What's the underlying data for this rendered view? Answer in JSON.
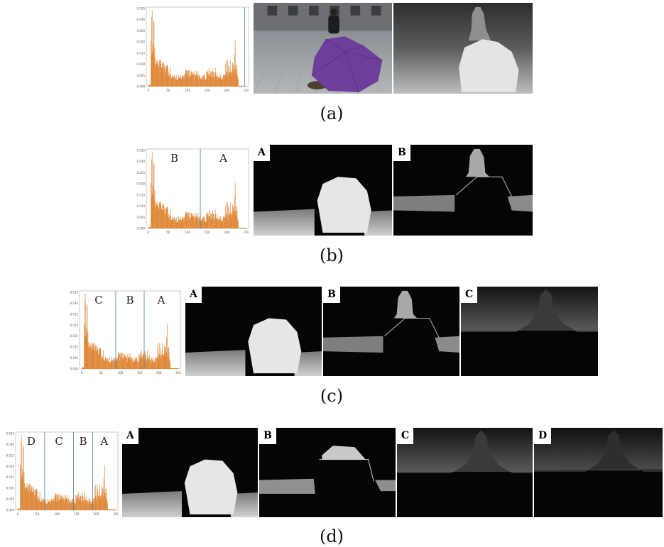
{
  "rows": [
    {
      "id": "a",
      "caption": "(a)",
      "histogram": {
        "yticks": [
          "0.000",
          "0.005",
          "0.010",
          "0.015",
          "0.020",
          "0.025",
          "0.030",
          "0.035"
        ],
        "xticks": [
          "0",
          "50",
          "100",
          "150",
          "200",
          "250"
        ],
        "segments": [],
        "dividers": [
          250
        ]
      },
      "panels": [
        {
          "kind": "photo",
          "label": ""
        },
        {
          "kind": "depth",
          "label": ""
        }
      ]
    },
    {
      "id": "b",
      "caption": "(b)",
      "histogram": {
        "yticks": [
          "0.000",
          "0.005",
          "0.010",
          "0.015",
          "0.020",
          "0.025",
          "0.030",
          "0.035"
        ],
        "xticks": [
          "0",
          "50",
          "100",
          "150",
          "200",
          "250"
        ],
        "segments": [
          "B",
          "A"
        ],
        "dividers": [
          135
        ]
      },
      "panels": [
        {
          "kind": "A",
          "label": "A"
        },
        {
          "kind": "B",
          "label": "B"
        }
      ]
    },
    {
      "id": "c",
      "caption": "(c)",
      "histogram": {
        "yticks": [
          "0.000",
          "0.005",
          "0.010",
          "0.015",
          "0.020",
          "0.025",
          "0.030",
          "0.035"
        ],
        "xticks": [
          "0",
          "50",
          "100",
          "150",
          "200",
          "250"
        ],
        "segments": [
          "C",
          "B",
          "A"
        ],
        "dividers": [
          90,
          165
        ]
      },
      "panels": [
        {
          "kind": "A",
          "label": "A"
        },
        {
          "kind": "B",
          "label": "B"
        },
        {
          "kind": "C",
          "label": "C"
        }
      ]
    },
    {
      "id": "d",
      "caption": "(d)",
      "histogram": {
        "yticks": [
          "0.000",
          "0.005",
          "0.010",
          "0.015",
          "0.020",
          "0.025",
          "0.030",
          "0.035"
        ],
        "xticks": [
          "0",
          "50",
          "100",
          "150",
          "200",
          "250"
        ],
        "segments": [
          "D",
          "C",
          "B",
          "A"
        ],
        "dividers": [
          70,
          145,
          195
        ]
      },
      "panels": [
        {
          "kind": "A",
          "label": "A"
        },
        {
          "kind": "B2",
          "label": "B"
        },
        {
          "kind": "C",
          "label": "C"
        },
        {
          "kind": "D",
          "label": "D"
        }
      ]
    }
  ],
  "colors": {
    "histogram_bar": "#e08a3c",
    "divider": "#4a7fa8"
  }
}
